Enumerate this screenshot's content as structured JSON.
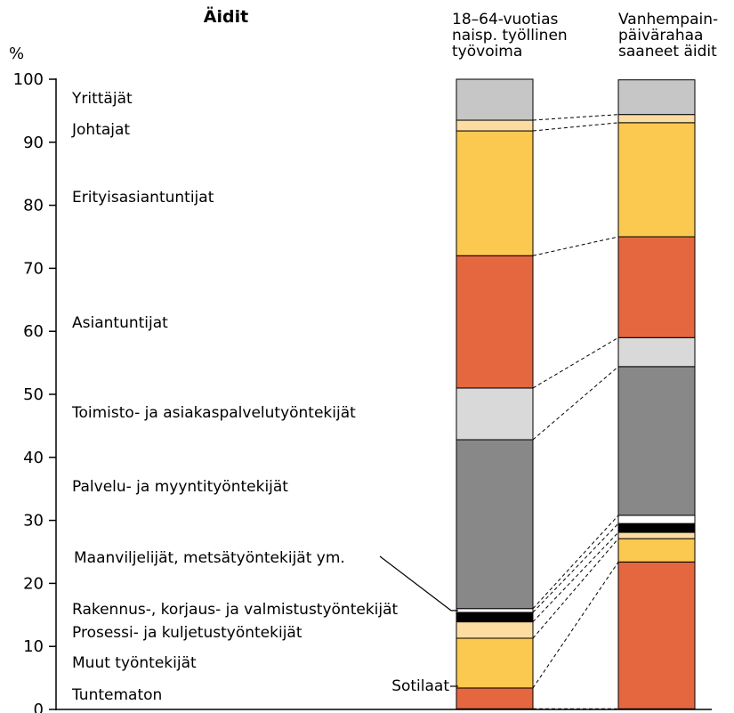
{
  "chart_data": {
    "type": "stacked-bar",
    "title": "Äidit",
    "ylabel": "%",
    "ylim": [
      0,
      100
    ],
    "yticks": [
      "0",
      "10",
      "20",
      "30",
      "40",
      "50",
      "60",
      "70",
      "80",
      "90",
      "100"
    ],
    "grid": false,
    "columns": [
      {
        "key": "workforce",
        "label_lines": [
          "18–64-vuotias",
          "naisp. työllinen",
          "työvoima"
        ]
      },
      {
        "key": "mothers",
        "label_lines": [
          "Vanhempain-",
          "päivärahaa",
          "saaneet äidit"
        ]
      }
    ],
    "categories": [
      {
        "name": "Sotilaat",
        "color": "#ffffff",
        "values": {
          "workforce": 0.1,
          "mothers": 0.1
        }
      },
      {
        "name": "Tuntematon",
        "color": "#e5673f",
        "values": {
          "workforce": 3.3,
          "mothers": 23.3
        }
      },
      {
        "name": "Muut työntekijät",
        "color": "#fbc94f",
        "values": {
          "workforce": 7.9,
          "mothers": 3.7
        }
      },
      {
        "name": "Prosessi- ja kuljetustyöntekijät",
        "color": "#fddca1",
        "values": {
          "workforce": 2.6,
          "mothers": 1.0
        }
      },
      {
        "name": "Rakennus-, korjaus- ja valmistustyöntekijät",
        "color": "#000000",
        "values": {
          "workforce": 1.5,
          "mothers": 1.4
        }
      },
      {
        "name": "Maanviljelijät, metsätyöntekijät ym.",
        "color": "#ffffff",
        "values": {
          "workforce": 0.6,
          "mothers": 1.3
        }
      },
      {
        "name": "Palvelu- ja myyntityöntekijät",
        "color": "#888888",
        "values": {
          "workforce": 26.8,
          "mothers": 23.6
        }
      },
      {
        "name": "Toimisto- ja asiakaspalvelutyöntekijät",
        "color": "#d9d9d9",
        "values": {
          "workforce": 8.2,
          "mothers": 4.6
        }
      },
      {
        "name": "Asiantuntijat",
        "color": "#e5673f",
        "values": {
          "workforce": 21.0,
          "mothers": 16.0
        }
      },
      {
        "name": "Erityisasiantuntijat",
        "color": "#fbc94f",
        "values": {
          "workforce": 19.8,
          "mothers": 18.1
        }
      },
      {
        "name": "Johtajat",
        "color": "#fddca1",
        "values": {
          "workforce": 1.7,
          "mothers": 1.3
        }
      },
      {
        "name": "Yrittäjät",
        "color": "#c6c6c6",
        "values": {
          "workforce": 6.5,
          "mothers": 5.5
        }
      }
    ]
  }
}
